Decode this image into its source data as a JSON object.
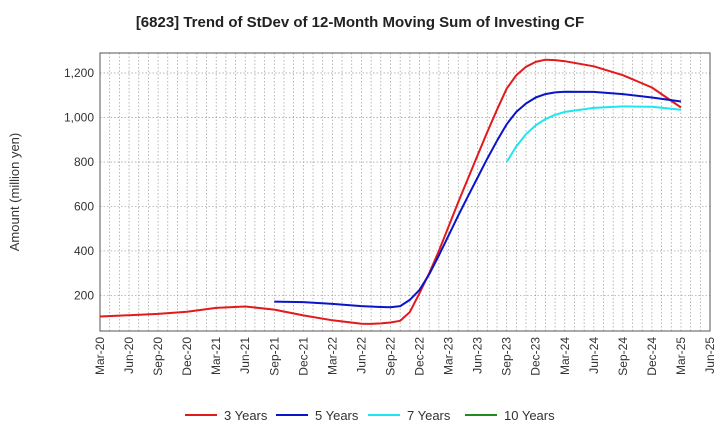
{
  "chart_data": {
    "type": "line",
    "title": "[6823]  Trend of StDev of 12-Month Moving Sum of Investing CF",
    "xlabel": "",
    "ylabel": "Amount (million yen)",
    "ylim": [
      40,
      1290
    ],
    "yticks": [
      200,
      400,
      600,
      800,
      1000,
      1200
    ],
    "ytick_labels": [
      "200",
      "400",
      "600",
      "800",
      "1,000",
      "1,200"
    ],
    "x_tick_labels": [
      "Mar-20",
      "Jun-20",
      "Sep-20",
      "Dec-20",
      "Mar-21",
      "Jun-21",
      "Sep-21",
      "Dec-21",
      "Mar-22",
      "Jun-22",
      "Sep-22",
      "Dec-22",
      "Mar-23",
      "Jun-23",
      "Sep-23",
      "Dec-23",
      "Mar-24",
      "Jun-24",
      "Sep-24",
      "Dec-24",
      "Mar-25",
      "Jun-25"
    ],
    "grid": true,
    "legend_position": "bottom",
    "series": [
      {
        "name": "3 Years",
        "color": "#e31a1c",
        "points": [
          [
            "Mar-20",
            105
          ],
          [
            "Jun-20",
            111
          ],
          [
            "Sep-20",
            117
          ],
          [
            "Dec-20",
            127
          ],
          [
            "Mar-21",
            144
          ],
          [
            "Jun-21",
            150
          ],
          [
            "Sep-21",
            136
          ],
          [
            "Dec-21",
            110
          ],
          [
            "Mar-22",
            88
          ],
          [
            "Jun-22",
            73
          ],
          [
            "Jul-22",
            72
          ],
          [
            "Aug-22",
            74
          ],
          [
            "Sep-22",
            78
          ],
          [
            "Oct-22",
            86
          ],
          [
            "Nov-22",
            125
          ],
          [
            "Dec-22",
            210
          ],
          [
            "Jan-23",
            300
          ],
          [
            "Feb-23",
            400
          ],
          [
            "Mar-23",
            510
          ],
          [
            "Apr-23",
            620
          ],
          [
            "May-23",
            725
          ],
          [
            "Jun-23",
            830
          ],
          [
            "Jul-23",
            935
          ],
          [
            "Aug-23",
            1035
          ],
          [
            "Sep-23",
            1130
          ],
          [
            "Oct-23",
            1190
          ],
          [
            "Nov-23",
            1228
          ],
          [
            "Dec-23",
            1250
          ],
          [
            "Jan-24",
            1260
          ],
          [
            "Feb-24",
            1258
          ],
          [
            "Mar-24",
            1253
          ],
          [
            "Jun-24",
            1230
          ],
          [
            "Sep-24",
            1190
          ],
          [
            "Dec-24",
            1135
          ],
          [
            "Mar-25",
            1045
          ]
        ]
      },
      {
        "name": "5 Years",
        "color": "#0a14c8",
        "points": [
          [
            "Sep-21",
            172
          ],
          [
            "Dec-21",
            170
          ],
          [
            "Mar-22",
            162
          ],
          [
            "Jun-22",
            152
          ],
          [
            "Aug-22",
            148
          ],
          [
            "Sep-22",
            147
          ],
          [
            "Oct-22",
            152
          ],
          [
            "Nov-22",
            180
          ],
          [
            "Dec-22",
            225
          ],
          [
            "Jan-23",
            295
          ],
          [
            "Feb-23",
            380
          ],
          [
            "Mar-23",
            470
          ],
          [
            "Apr-23",
            560
          ],
          [
            "May-23",
            645
          ],
          [
            "Jun-23",
            730
          ],
          [
            "Jul-23",
            815
          ],
          [
            "Aug-23",
            895
          ],
          [
            "Sep-23",
            970
          ],
          [
            "Oct-23",
            1025
          ],
          [
            "Nov-23",
            1063
          ],
          [
            "Dec-23",
            1090
          ],
          [
            "Jan-24",
            1105
          ],
          [
            "Feb-24",
            1113
          ],
          [
            "Mar-24",
            1116
          ],
          [
            "Jun-24",
            1115
          ],
          [
            "Sep-24",
            1105
          ],
          [
            "Dec-24",
            1090
          ],
          [
            "Mar-25",
            1072
          ]
        ]
      },
      {
        "name": "7 Years",
        "color": "#1ee6f0",
        "points": [
          [
            "Sep-23",
            800
          ],
          [
            "Oct-23",
            870
          ],
          [
            "Nov-23",
            925
          ],
          [
            "Dec-23",
            965
          ],
          [
            "Jan-24",
            993
          ],
          [
            "Feb-24",
            1012
          ],
          [
            "Mar-24",
            1025
          ],
          [
            "Jun-24",
            1043
          ],
          [
            "Sep-24",
            1050
          ],
          [
            "Dec-24",
            1048
          ],
          [
            "Mar-25",
            1035
          ]
        ]
      },
      {
        "name": "10 Years",
        "color": "#1e8c1e",
        "points": []
      }
    ]
  }
}
